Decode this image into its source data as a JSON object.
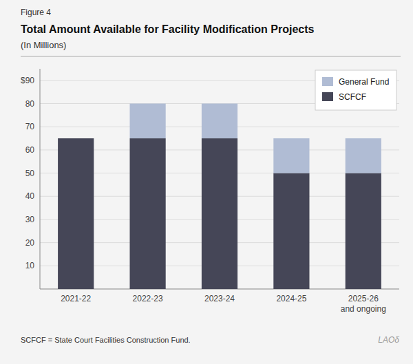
{
  "chart_data": {
    "type": "bar",
    "stacked": true,
    "title": "Total Amount Available for Facility Modification Projects",
    "subtitle": "(In Millions)",
    "annotations": [
      "Figure 4",
      "SCFCF = State Court Facilities Construction Fund.",
      "LAOδ"
    ],
    "categories": [
      "2021-22",
      "2022-23",
      "2023-24",
      "2024-25",
      "2025-26\nand ongoing"
    ],
    "series": [
      {
        "name": "SCFCF",
        "color": "#454657",
        "values": [
          65,
          65,
          65,
          50,
          50
        ]
      },
      {
        "name": "General Fund",
        "color": "#b0bcd4",
        "values": [
          0,
          15,
          15,
          15,
          15
        ]
      }
    ],
    "ylim": [
      0,
      95
    ],
    "yticks": [
      10,
      20,
      30,
      40,
      50,
      60,
      70,
      80,
      {
        "value": 90,
        "label": "$90"
      }
    ],
    "grid": true,
    "legend": "upper right"
  }
}
